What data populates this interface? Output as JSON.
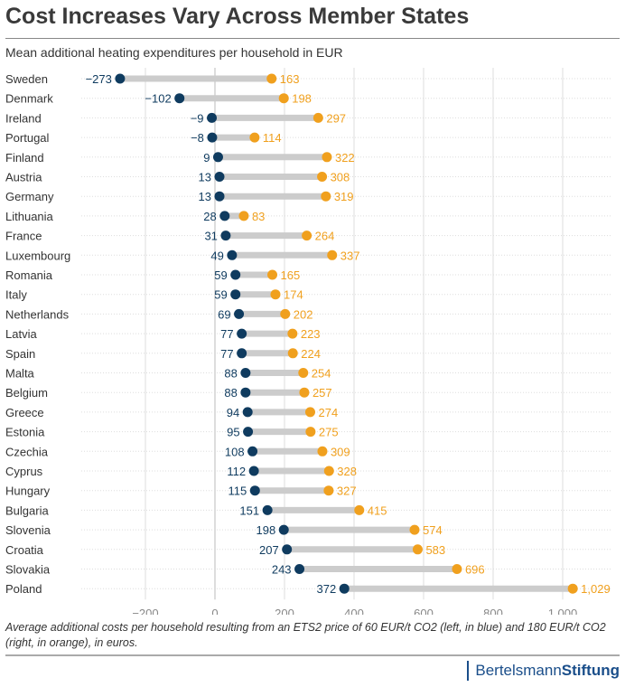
{
  "title": "Cost Increases Vary Across Member States",
  "subtitle": "Mean additional heating expenditures per household in EUR",
  "caption": "Average additional costs per household resulting from an ETS2 price of 60 EUR/t CO2 (left, in blue) and 180 EUR/t CO2 (right, in orange), in euros.",
  "logo": {
    "part1": "Bertelsmann",
    "part2": "Stiftung"
  },
  "colors": {
    "low": "#0f3b5f",
    "high": "#f0a01e",
    "bar": "#cccccc",
    "grid": "#dddddd"
  },
  "chart_data": {
    "type": "dumbbell",
    "categories": [
      "Sweden",
      "Denmark",
      "Ireland",
      "Portugal",
      "Finland",
      "Austria",
      "Germany",
      "Lithuania",
      "France",
      "Luxembourg",
      "Romania",
      "Italy",
      "Netherlands",
      "Latvia",
      "Spain",
      "Malta",
      "Belgium",
      "Greece",
      "Estonia",
      "Czechia",
      "Cyprus",
      "Hungary",
      "Bulgaria",
      "Slovenia",
      "Croatia",
      "Slovakia",
      "Poland"
    ],
    "series": [
      {
        "values": [
          -273,
          -102,
          -9,
          -8,
          9,
          13,
          13,
          28,
          31,
          49,
          59,
          59,
          69,
          77,
          77,
          88,
          88,
          94,
          95,
          108,
          112,
          115,
          151,
          198,
          207,
          243,
          372
        ]
      },
      {
        "values": [
          163,
          198,
          297,
          114,
          322,
          308,
          319,
          83,
          264,
          337,
          165,
          174,
          202,
          223,
          224,
          254,
          257,
          274,
          275,
          309,
          328,
          327,
          415,
          574,
          583,
          696,
          1029
        ]
      }
    ],
    "xlim": [
      -300,
      1150
    ],
    "xticks": [
      -200,
      0,
      200,
      400,
      600,
      800,
      1000
    ],
    "xtick_labels": [
      "−200",
      "0",
      "200",
      "400",
      "600",
      "800",
      "1,000"
    ],
    "grid": "vertical"
  }
}
